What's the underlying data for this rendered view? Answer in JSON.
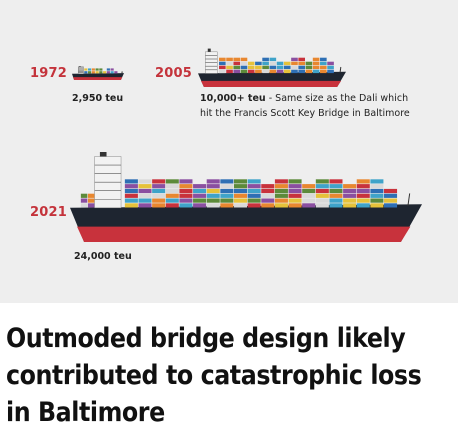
{
  "graphic": {
    "ships": [
      {
        "year": "1972",
        "capacity_value": "2,950 teu",
        "capacity_note": ""
      },
      {
        "year": "2005",
        "capacity_value": "10,000+ teu",
        "capacity_note": "- Same size as the Dali which",
        "capacity_note_line2": "hit the Francis Scott Key Bridge in Baltimore"
      },
      {
        "year": "2021",
        "capacity_value": "24,000 teu",
        "capacity_note": ""
      }
    ],
    "colors": {
      "background": "#eeeeee",
      "year_red": "#c4333b",
      "hull_red": "#c8323c",
      "hull_dark": "#1e2530",
      "container_palette": [
        "#c8323c",
        "#2e6fb4",
        "#3fa3c9",
        "#e8872f",
        "#d9d9d9",
        "#5c8a3a",
        "#8a4fa0",
        "#e6c23a"
      ]
    }
  },
  "headline": "Outmoded bridge design likely contributed to catastrophic loss in Baltimore"
}
